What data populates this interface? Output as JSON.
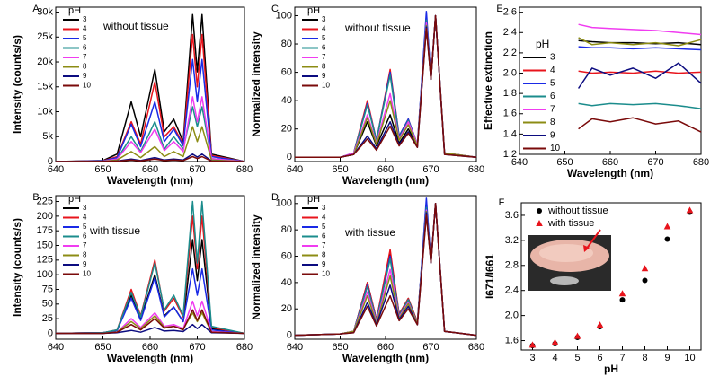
{
  "chart_data": [
    {
      "panel_label": "A",
      "type": "line",
      "annotation": "without tissue",
      "legend_title": "pH",
      "x_label": "Wavelength (nm)",
      "y_label": "Intensity (counts/s)",
      "xlim": [
        640,
        680
      ],
      "xticks": [
        640,
        650,
        660,
        670,
        680
      ],
      "ylim": [
        0,
        31000
      ],
      "yticks": [
        0,
        {
          "value": 5000,
          "label": "5k"
        },
        {
          "value": 10000,
          "label": "10k"
        },
        {
          "value": 15000,
          "label": "15k"
        },
        {
          "value": 20000,
          "label": "20k"
        },
        {
          "value": 25000,
          "label": "25k"
        },
        {
          "value": 30000,
          "label": "30k"
        }
      ],
      "x": [
        640,
        650,
        653,
        656,
        658,
        661,
        663,
        665,
        667,
        669,
        670,
        671,
        673,
        680
      ],
      "series": [
        {
          "name": "3",
          "color": "#000000",
          "values": [
            0,
            200,
            1500,
            12000,
            5000,
            18500,
            6000,
            8500,
            4000,
            29500,
            18000,
            29500,
            1500,
            0
          ]
        },
        {
          "name": "4",
          "color": "#e8141c",
          "values": [
            0,
            150,
            1000,
            8000,
            3500,
            16000,
            5000,
            7000,
            3500,
            25500,
            15000,
            25500,
            1200,
            0
          ]
        },
        {
          "name": "5",
          "color": "#1a2ae6",
          "values": [
            0,
            120,
            800,
            7500,
            3000,
            12000,
            4000,
            6500,
            3200,
            20500,
            12000,
            20500,
            1000,
            0
          ]
        },
        {
          "name": "6",
          "color": "#1b8c8c",
          "values": [
            0,
            80,
            500,
            5000,
            2000,
            8000,
            2500,
            5000,
            2500,
            11000,
            7000,
            11000,
            600,
            0
          ]
        },
        {
          "name": "7",
          "color": "#f03cf0",
          "values": [
            0,
            80,
            500,
            4000,
            1800,
            6500,
            2200,
            4000,
            2000,
            13000,
            8000,
            13000,
            600,
            0
          ]
        },
        {
          "name": "8",
          "color": "#8c8c14",
          "values": [
            0,
            40,
            300,
            2000,
            800,
            3000,
            1000,
            2000,
            1000,
            7000,
            4000,
            7000,
            300,
            0
          ]
        },
        {
          "name": "9",
          "color": "#0c0c80",
          "values": [
            0,
            20,
            100,
            500,
            200,
            800,
            300,
            500,
            300,
            1500,
            900,
            1500,
            100,
            0
          ]
        },
        {
          "name": "10",
          "color": "#7a0a0a",
          "values": [
            0,
            10,
            80,
            300,
            150,
            500,
            200,
            300,
            200,
            1000,
            600,
            1000,
            80,
            0
          ]
        }
      ]
    },
    {
      "panel_label": "B",
      "type": "line",
      "annotation": "with tissue",
      "legend_title": "pH",
      "x_label": "Wavelength (nm)",
      "y_label": "Intensity (counts/s)",
      "xlim": [
        640,
        680
      ],
      "xticks": [
        640,
        650,
        660,
        670,
        680
      ],
      "ylim": [
        -10,
        235
      ],
      "yticks": [
        0,
        25,
        50,
        75,
        100,
        125,
        150,
        175,
        200,
        225
      ],
      "x": [
        640,
        650,
        653,
        656,
        658,
        661,
        663,
        665,
        667,
        669,
        670,
        671,
        673,
        680
      ],
      "series": [
        {
          "name": "3",
          "color": "#000000",
          "values": [
            0,
            1,
            5,
            65,
            25,
            100,
            30,
            45,
            20,
            160,
            90,
            160,
            8,
            0
          ]
        },
        {
          "name": "4",
          "color": "#e8141c",
          "values": [
            0,
            1,
            6,
            75,
            30,
            125,
            38,
            60,
            28,
            200,
            110,
            200,
            10,
            0
          ]
        },
        {
          "name": "5",
          "color": "#1a2ae6",
          "values": [
            0,
            1,
            5,
            60,
            22,
            95,
            28,
            45,
            20,
            110,
            65,
            110,
            6,
            0
          ]
        },
        {
          "name": "6",
          "color": "#1b8c8c",
          "values": [
            0,
            1,
            6,
            70,
            28,
            120,
            40,
            65,
            30,
            225,
            120,
            225,
            12,
            0
          ]
        },
        {
          "name": "7",
          "color": "#f03cf0",
          "values": [
            0,
            0,
            2,
            25,
            10,
            35,
            12,
            15,
            8,
            55,
            30,
            55,
            3,
            0
          ]
        },
        {
          "name": "8",
          "color": "#8c8c14",
          "values": [
            0,
            0,
            2,
            20,
            8,
            30,
            10,
            12,
            7,
            35,
            20,
            35,
            2,
            0
          ]
        },
        {
          "name": "9",
          "color": "#0c0c80",
          "values": [
            0,
            0,
            1,
            5,
            2,
            10,
            4,
            5,
            3,
            15,
            8,
            15,
            1,
            0
          ]
        },
        {
          "name": "10",
          "color": "#7a0a0a",
          "values": [
            0,
            0,
            2,
            15,
            6,
            25,
            9,
            12,
            6,
            40,
            22,
            40,
            2,
            0
          ]
        }
      ]
    },
    {
      "panel_label": "C",
      "type": "line",
      "annotation": "without tissue",
      "legend_title": "pH",
      "x_label": "Wavelength (nm)",
      "y_label": "Normalized intensity",
      "xlim": [
        640,
        680
      ],
      "xticks": [
        640,
        650,
        660,
        670,
        680
      ],
      "ylim": [
        -3,
        106
      ],
      "yticks": [
        0,
        20,
        40,
        60,
        80,
        100
      ],
      "x": [
        640,
        650,
        653,
        656,
        658,
        661,
        663,
        665,
        667,
        669,
        670,
        671,
        673,
        680
      ],
      "series": [
        {
          "name": "3",
          "color": "#000000",
          "values": [
            0,
            0,
            2,
            25,
            8,
            30,
            10,
            20,
            8,
            100,
            55,
            100,
            3,
            0
          ]
        },
        {
          "name": "4",
          "color": "#e8141c",
          "values": [
            0,
            0,
            3,
            40,
            12,
            62,
            15,
            27,
            9,
            95,
            55,
            100,
            3,
            0
          ]
        },
        {
          "name": "5",
          "color": "#1a2ae6",
          "values": [
            0,
            0,
            3,
            38,
            12,
            60,
            15,
            27,
            9,
            103,
            56,
            100,
            3,
            0
          ]
        },
        {
          "name": "6",
          "color": "#1b8c8c",
          "values": [
            0,
            0,
            3,
            37,
            12,
            58,
            14,
            26,
            9,
            97,
            55,
            100,
            3,
            0
          ]
        },
        {
          "name": "7",
          "color": "#f03cf0",
          "values": [
            0,
            0,
            3,
            30,
            10,
            45,
            13,
            25,
            9,
            95,
            55,
            100,
            3,
            0
          ]
        },
        {
          "name": "8",
          "color": "#8c8c14",
          "values": [
            0,
            0,
            2,
            28,
            9,
            40,
            12,
            23,
            8,
            93,
            55,
            100,
            3,
            0
          ]
        },
        {
          "name": "9",
          "color": "#0c0c80",
          "values": [
            0,
            0,
            2,
            15,
            6,
            25,
            9,
            18,
            7,
            92,
            55,
            100,
            2,
            0
          ]
        },
        {
          "name": "10",
          "color": "#7a0a0a",
          "values": [
            0,
            0,
            2,
            13,
            5,
            22,
            8,
            17,
            7,
            91,
            55,
            100,
            2,
            0
          ]
        }
      ]
    },
    {
      "panel_label": "D",
      "type": "line",
      "annotation": "with tissue",
      "legend_title": "pH",
      "x_label": "Wavelength (nm)",
      "y_label": "Normalized intensity",
      "xlim": [
        640,
        680
      ],
      "xticks": [
        640,
        650,
        660,
        670,
        680
      ],
      "ylim": [
        -3,
        106
      ],
      "yticks": [
        0,
        20,
        40,
        60,
        80,
        100
      ],
      "x": [
        640,
        650,
        653,
        656,
        658,
        661,
        663,
        665,
        667,
        669,
        670,
        671,
        673,
        680
      ],
      "series": [
        {
          "name": "3",
          "color": "#000000",
          "values": [
            0,
            1,
            3,
            40,
            12,
            62,
            16,
            28,
            10,
            100,
            56,
            100,
            3,
            0
          ]
        },
        {
          "name": "4",
          "color": "#e8141c",
          "values": [
            0,
            1,
            3,
            40,
            12,
            65,
            16,
            28,
            10,
            96,
            55,
            100,
            3,
            0
          ]
        },
        {
          "name": "5",
          "color": "#1a2ae6",
          "values": [
            0,
            1,
            3,
            38,
            11,
            60,
            15,
            27,
            9,
            104,
            56,
            100,
            3,
            0
          ]
        },
        {
          "name": "6",
          "color": "#1b8c8c",
          "values": [
            0,
            1,
            3,
            37,
            11,
            58,
            15,
            27,
            9,
            97,
            55,
            100,
            3,
            0
          ]
        },
        {
          "name": "7",
          "color": "#f03cf0",
          "values": [
            0,
            1,
            3,
            33,
            10,
            50,
            14,
            25,
            9,
            95,
            55,
            100,
            3,
            0
          ]
        },
        {
          "name": "8",
          "color": "#8c8c14",
          "values": [
            0,
            1,
            3,
            30,
            9,
            45,
            13,
            24,
            9,
            94,
            55,
            100,
            3,
            0
          ]
        },
        {
          "name": "9",
          "color": "#0c0c80",
          "values": [
            0,
            1,
            2,
            25,
            8,
            38,
            12,
            22,
            8,
            93,
            55,
            100,
            3,
            0
          ]
        },
        {
          "name": "10",
          "color": "#7a0a0a",
          "values": [
            0,
            1,
            2,
            22,
            7,
            30,
            11,
            20,
            8,
            91,
            55,
            100,
            3,
            0
          ]
        }
      ]
    },
    {
      "panel_label": "E",
      "type": "line",
      "legend_title": "pH",
      "x_label": "Wavelength (nm)",
      "y_label": "Effective extinction",
      "xlim": [
        640,
        680
      ],
      "xticks": [
        640,
        650,
        660,
        670,
        680
      ],
      "ylim": [
        1.2,
        2.65
      ],
      "yticks": [
        1.2,
        1.4,
        1.6,
        1.8,
        {
          "value": 2,
          "label": "2.0"
        },
        2.2,
        2.4,
        2.6
      ],
      "x": [
        653,
        656,
        660,
        665,
        670,
        675,
        680
      ],
      "series": [
        {
          "name": "3",
          "color": "#000000",
          "values": [
            2.32,
            2.31,
            2.3,
            2.3,
            2.29,
            2.3,
            2.28
          ]
        },
        {
          "name": "4",
          "color": "#e8141c",
          "values": [
            2.02,
            2.0,
            2.01,
            2.0,
            2.02,
            2.0,
            2.01
          ]
        },
        {
          "name": "5",
          "color": "#1a2ae6",
          "values": [
            2.26,
            2.25,
            2.25,
            2.24,
            2.25,
            2.24,
            2.23
          ]
        },
        {
          "name": "6",
          "color": "#1b8c8c",
          "values": [
            1.7,
            1.68,
            1.7,
            1.69,
            1.7,
            1.68,
            1.65
          ]
        },
        {
          "name": "7",
          "color": "#f03cf0",
          "values": [
            2.48,
            2.45,
            2.44,
            2.43,
            2.42,
            2.4,
            2.38
          ]
        },
        {
          "name": "8",
          "color": "#8c8c14",
          "values": [
            2.35,
            2.28,
            2.3,
            2.28,
            2.3,
            2.27,
            2.33
          ]
        },
        {
          "name": "9",
          "color": "#0c0c80",
          "values": [
            1.85,
            2.05,
            1.98,
            2.05,
            1.95,
            2.1,
            1.9
          ]
        },
        {
          "name": "10",
          "color": "#7a0a0a",
          "values": [
            1.45,
            1.55,
            1.52,
            1.56,
            1.5,
            1.53,
            1.42
          ]
        }
      ]
    },
    {
      "panel_label": "F",
      "type": "scatter",
      "x_label": "pH",
      "y_label": "I671/I661",
      "xlim": [
        2.5,
        10.5
      ],
      "xticks": [
        3,
        4,
        5,
        6,
        7,
        8,
        9,
        10
      ],
      "ylim": [
        1.45,
        3.8
      ],
      "yticks": [
        1.6,
        {
          "value": 2,
          "label": "2.0"
        },
        2.4,
        2.8,
        3.2,
        3.6
      ],
      "x": [
        3,
        4,
        5,
        6,
        7,
        8,
        9,
        10
      ],
      "series": [
        {
          "name": "without tissue",
          "color": "#000000",
          "marker": "circle",
          "values": [
            1.52,
            1.55,
            1.65,
            1.82,
            2.25,
            2.56,
            3.22,
            3.65
          ]
        },
        {
          "name": "with tissue",
          "color": "#e8141c",
          "marker": "triangle",
          "values": [
            1.53,
            1.57,
            1.67,
            1.85,
            2.35,
            2.75,
            3.42,
            3.68
          ]
        }
      ]
    }
  ]
}
